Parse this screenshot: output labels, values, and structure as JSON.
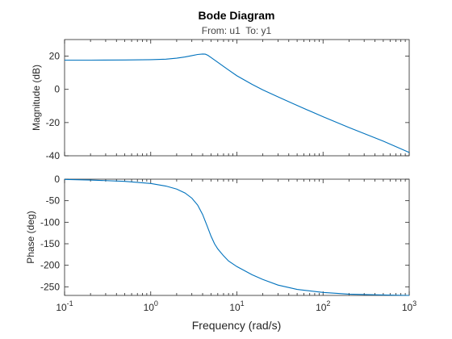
{
  "chart_data": {
    "type": "line",
    "title": "Bode Diagram",
    "subtitle": "From: u1  To: y1",
    "xlabel": "Frequency (rad/s)",
    "x_scale": "log",
    "xlim": [
      0.1,
      1000
    ],
    "x_ticks": [
      {
        "base": "10",
        "exp": "-1",
        "value": 0.1
      },
      {
        "base": "10",
        "exp": "0",
        "value": 1
      },
      {
        "base": "10",
        "exp": "1",
        "value": 10
      },
      {
        "base": "10",
        "exp": "2",
        "value": 100
      },
      {
        "base": "10",
        "exp": "3",
        "value": 1000
      }
    ],
    "line_color": "#0072BD",
    "grid": false,
    "subplots": [
      {
        "ylabel": "Magnitude (dB)",
        "ylim": [
          -40,
          30
        ],
        "y_ticks": [
          "20",
          "0",
          "-20",
          "-40"
        ],
        "y_tick_values": [
          20,
          0,
          -20,
          -40
        ],
        "x": [
          0.1,
          0.2,
          0.5,
          1,
          1.5,
          2,
          2.5,
          3,
          3.5,
          4,
          4.3,
          4.6,
          5,
          5.5,
          6,
          7,
          8,
          10,
          15,
          20,
          30,
          50,
          100,
          200,
          500,
          1000
        ],
        "y": [
          17.6,
          17.6,
          17.7,
          17.9,
          18.2,
          18.8,
          19.5,
          20.3,
          21.0,
          21.3,
          21.2,
          20.5,
          19.2,
          17.7,
          16.3,
          13.8,
          11.7,
          8.2,
          3.0,
          -0.3,
          -4.5,
          -9.7,
          -16.5,
          -23.0,
          -31.2,
          -38.0
        ]
      },
      {
        "ylabel": "Phase (deg)",
        "ylim": [
          -270,
          0
        ],
        "y_ticks": [
          "0",
          "-50",
          "-100",
          "-150",
          "-200",
          "-250"
        ],
        "y_tick_values": [
          0,
          -50,
          -100,
          -150,
          -200,
          -250
        ],
        "x": [
          0.1,
          0.2,
          0.5,
          1,
          1.5,
          2,
          2.5,
          3,
          3.5,
          4,
          4.5,
          5,
          5.5,
          6,
          7,
          8,
          10,
          15,
          20,
          30,
          50,
          100,
          200,
          500,
          1000
        ],
        "y": [
          -0.5,
          -2,
          -5,
          -10,
          -16,
          -23,
          -32,
          -44,
          -60,
          -82,
          -108,
          -132,
          -150,
          -162,
          -178,
          -190,
          -203,
          -222,
          -233,
          -246,
          -256,
          -263,
          -267,
          -269,
          -270
        ]
      }
    ]
  }
}
